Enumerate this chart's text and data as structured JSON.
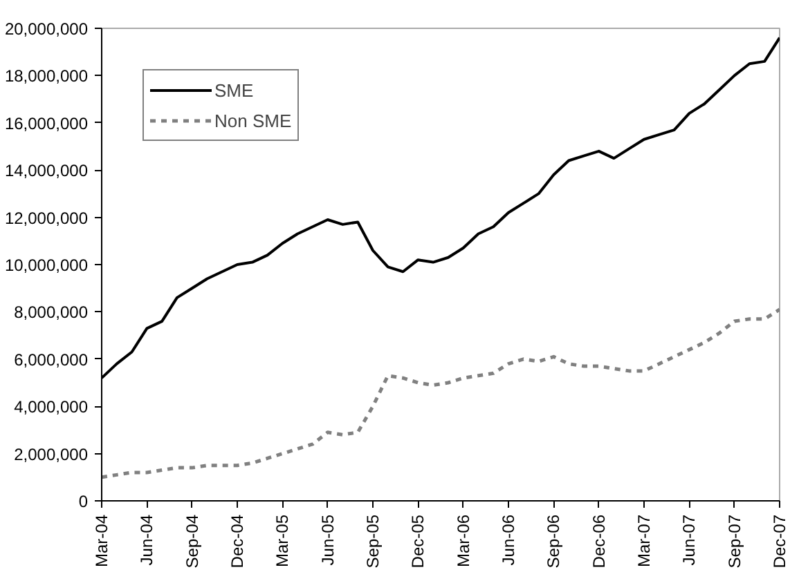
{
  "chart_data": {
    "type": "line",
    "categories": [
      "Mar-04",
      null,
      null,
      "Jun-04",
      null,
      null,
      "Sep-04",
      null,
      null,
      "Dec-04",
      null,
      null,
      "Mar-05",
      null,
      null,
      "Jun-05",
      null,
      null,
      "Sep-05",
      null,
      null,
      "Dec-05",
      null,
      null,
      "Mar-06",
      null,
      null,
      "Jun-06",
      null,
      null,
      "Sep-06",
      null,
      null,
      "Dec-06",
      null,
      null,
      "Mar-07",
      null,
      null,
      "Jun-07",
      null,
      null,
      "Sep-07",
      null,
      null,
      "Dec-07"
    ],
    "series": [
      {
        "name": "SME",
        "color": "#000000",
        "line_style": "solid",
        "values": [
          5200000,
          5800000,
          6300000,
          7300000,
          7600000,
          8600000,
          9000000,
          9400000,
          9700000,
          10000000,
          10100000,
          10400000,
          10900000,
          11300000,
          11600000,
          11900000,
          11700000,
          11800000,
          10600000,
          9900000,
          9700000,
          10200000,
          10100000,
          10300000,
          10700000,
          11300000,
          11600000,
          12200000,
          12600000,
          13000000,
          13800000,
          14400000,
          14600000,
          14800000,
          14500000,
          14900000,
          15300000,
          15500000,
          15700000,
          16400000,
          16800000,
          17400000,
          18000000,
          18500000,
          18600000,
          19600000
        ]
      },
      {
        "name": "Non SME",
        "color": "#808080",
        "line_style": "dashed",
        "values": [
          1000000,
          1100000,
          1200000,
          1200000,
          1300000,
          1400000,
          1400000,
          1500000,
          1500000,
          1500000,
          1600000,
          1800000,
          2000000,
          2200000,
          2400000,
          2900000,
          2800000,
          2900000,
          4000000,
          5300000,
          5200000,
          5000000,
          4900000,
          5000000,
          5200000,
          5300000,
          5400000,
          5800000,
          6000000,
          5900000,
          6100000,
          5800000,
          5700000,
          5700000,
          5600000,
          5500000,
          5500000,
          5800000,
          6100000,
          6400000,
          6700000,
          7100000,
          7600000,
          7700000,
          7700000,
          8100000
        ]
      }
    ],
    "ylim": [
      0,
      20000000
    ],
    "yticks": [
      0,
      {
        "value": 2000000,
        "label": "2,000,000"
      },
      {
        "value": 4000000,
        "label": "4,000,000"
      },
      {
        "value": 6000000,
        "label": "6,000,000"
      },
      {
        "value": 8000000,
        "label": "8,000,000"
      },
      {
        "value": 10000000,
        "label": "10,000,000"
      },
      {
        "value": 12000000,
        "label": "12,000,000"
      },
      {
        "value": 14000000,
        "label": "14,000,000"
      },
      {
        "value": 16000000,
        "label": "16,000,000"
      },
      {
        "value": 18000000,
        "label": "18,000,000"
      },
      {
        "value": 20000000,
        "label": "20,000,000"
      }
    ],
    "grid": false,
    "legend": "top left"
  }
}
